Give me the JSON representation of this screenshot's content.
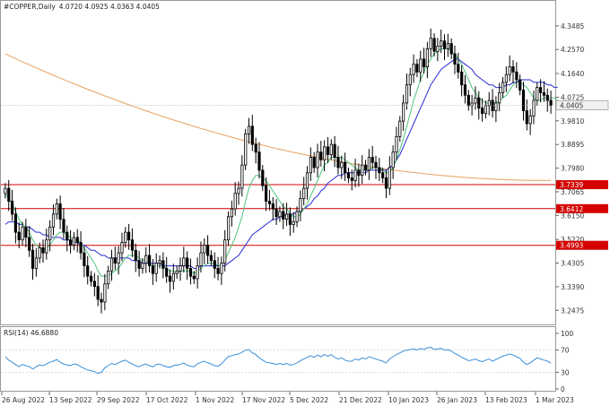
{
  "chart_data": {
    "type": "candlestick",
    "title": "#COPPER,Daily",
    "ohlc_label": "4.0720 4.0925 4.0363 4.0405",
    "last_price": 4.0405,
    "ylim": [
      3.2,
      4.4
    ],
    "price_ticks": [
      "4.3485",
      "4.2570",
      "4.1640",
      "4.0725",
      "3.9810",
      "3.8895",
      "3.7980",
      "3.7065",
      "3.6150",
      "3.5220",
      "3.4305",
      "3.3390",
      "3.2475"
    ],
    "horizontal_levels": [
      {
        "label": "3.7339",
        "value": 3.7339,
        "color": "#d40000"
      },
      {
        "label": "3.6412",
        "value": 3.6412,
        "color": "#d40000"
      },
      {
        "label": "3.4993",
        "value": 3.4993,
        "color": "#d40000"
      }
    ],
    "x_labels": [
      "26 Aug 2022",
      "13 Sep 2022",
      "29 Sep 2022",
      "17 Oct 2022",
      "1 Nov 2022",
      "17 Nov 2022",
      "5 Dec 2022",
      "21 Dec 2022",
      "10 Jan 2023",
      "26 Jan 2023",
      "13 Feb 2023",
      "1 Mar 2023"
    ],
    "closes": [
      3.72,
      3.67,
      3.62,
      3.55,
      3.52,
      3.57,
      3.53,
      3.48,
      3.41,
      3.45,
      3.49,
      3.47,
      3.52,
      3.57,
      3.62,
      3.66,
      3.6,
      3.55,
      3.52,
      3.5,
      3.53,
      3.51,
      3.47,
      3.42,
      3.38,
      3.36,
      3.34,
      3.29,
      3.28,
      3.35,
      3.4,
      3.45,
      3.43,
      3.47,
      3.51,
      3.55,
      3.52,
      3.48,
      3.44,
      3.41,
      3.43,
      3.46,
      3.42,
      3.39,
      3.43,
      3.44,
      3.41,
      3.38,
      3.36,
      3.39,
      3.4,
      3.42,
      3.45,
      3.41,
      3.38,
      3.37,
      3.42,
      3.47,
      3.5,
      3.46,
      3.44,
      3.41,
      3.39,
      3.43,
      3.52,
      3.61,
      3.64,
      3.7,
      3.72,
      3.81,
      3.93,
      3.96,
      3.89,
      3.86,
      3.79,
      3.73,
      3.67,
      3.66,
      3.64,
      3.61,
      3.63,
      3.6,
      3.62,
      3.58,
      3.59,
      3.63,
      3.68,
      3.72,
      3.78,
      3.84,
      3.8,
      3.86,
      3.83,
      3.88,
      3.85,
      3.89,
      3.84,
      3.8,
      3.82,
      3.78,
      3.76,
      3.75,
      3.79,
      3.77,
      3.81,
      3.79,
      3.84,
      3.82,
      3.8,
      3.78,
      3.76,
      3.72,
      3.8,
      3.86,
      3.92,
      3.98,
      4.05,
      4.12,
      4.16,
      4.2,
      4.17,
      4.22,
      4.19,
      4.26,
      4.3,
      4.25,
      4.27,
      4.29,
      4.26,
      4.28,
      4.24,
      4.2,
      4.17,
      4.12,
      4.08,
      4.04,
      4.05,
      4.07,
      4.03,
      4.01,
      4.04,
      4.06,
      4.02,
      4.05,
      4.09,
      4.13,
      4.16,
      4.19,
      4.17,
      4.14,
      4.1,
      4.02,
      3.97,
      4.0,
      4.06,
      4.11,
      4.09,
      4.08,
      4.06,
      4.0405
    ],
    "ma_fast": [
      3.7,
      3.68,
      3.66,
      3.63,
      3.6,
      3.58,
      3.57,
      3.55,
      3.52,
      3.5,
      3.49,
      3.48,
      3.49,
      3.5,
      3.52,
      3.54,
      3.55,
      3.55,
      3.54,
      3.53,
      3.52,
      3.52,
      3.51,
      3.49,
      3.47,
      3.45,
      3.43,
      3.4,
      3.38,
      3.38,
      3.38,
      3.39,
      3.4,
      3.41,
      3.43,
      3.45,
      3.46,
      3.46,
      3.46,
      3.45,
      3.44,
      3.44,
      3.43,
      3.42,
      3.42,
      3.42,
      3.42,
      3.41,
      3.4,
      3.4,
      3.39,
      3.4,
      3.4,
      3.4,
      3.4,
      3.39,
      3.4,
      3.41,
      3.42,
      3.43,
      3.43,
      3.43,
      3.42,
      3.42,
      3.44,
      3.47,
      3.5,
      3.53,
      3.57,
      3.61,
      3.67,
      3.72,
      3.75,
      3.77,
      3.77,
      3.76,
      3.75,
      3.73,
      3.71,
      3.69,
      3.67,
      3.65,
      3.64,
      3.62,
      3.61,
      3.61,
      3.62,
      3.64,
      3.66,
      3.69,
      3.72,
      3.75,
      3.78,
      3.81,
      3.82,
      3.84,
      3.84,
      3.84,
      3.84,
      3.83,
      3.82,
      3.81,
      3.8,
      3.79,
      3.79,
      3.79,
      3.79,
      3.8,
      3.8,
      3.8,
      3.79,
      3.78,
      3.78,
      3.8,
      3.83,
      3.87,
      3.91,
      3.96,
      4.01,
      4.06,
      4.1,
      4.14,
      4.17,
      4.2,
      4.22,
      4.24,
      4.25,
      4.26,
      4.26,
      4.26,
      4.25,
      4.24,
      4.22,
      4.2,
      4.17,
      4.14,
      4.11,
      4.09,
      4.07,
      4.06,
      4.05,
      4.05,
      4.05,
      4.05,
      4.06,
      4.07,
      4.08,
      4.1,
      4.12,
      4.13,
      4.13,
      4.12,
      4.11,
      4.09,
      4.07,
      4.06,
      4.06,
      4.07,
      4.07,
      4.07,
      4.07,
      4.06
    ],
    "ma_slow": [
      3.58,
      3.59,
      3.59,
      3.59,
      3.58,
      3.58,
      3.57,
      3.57,
      3.56,
      3.55,
      3.55,
      3.54,
      3.54,
      3.53,
      3.53,
      3.53,
      3.53,
      3.52,
      3.52,
      3.52,
      3.51,
      3.51,
      3.5,
      3.5,
      3.49,
      3.48,
      3.48,
      3.47,
      3.46,
      3.46,
      3.45,
      3.45,
      3.45,
      3.45,
      3.45,
      3.45,
      3.45,
      3.44,
      3.44,
      3.44,
      3.43,
      3.43,
      3.43,
      3.43,
      3.43,
      3.43,
      3.42,
      3.42,
      3.42,
      3.42,
      3.42,
      3.42,
      3.42,
      3.42,
      3.42,
      3.41,
      3.41,
      3.42,
      3.42,
      3.42,
      3.42,
      3.42,
      3.42,
      3.42,
      3.42,
      3.43,
      3.44,
      3.45,
      3.46,
      3.48,
      3.5,
      3.52,
      3.54,
      3.55,
      3.56,
      3.57,
      3.58,
      3.59,
      3.6,
      3.6,
      3.61,
      3.61,
      3.62,
      3.62,
      3.62,
      3.63,
      3.63,
      3.64,
      3.65,
      3.66,
      3.68,
      3.69,
      3.71,
      3.72,
      3.74,
      3.75,
      3.76,
      3.77,
      3.77,
      3.78,
      3.78,
      3.78,
      3.78,
      3.78,
      3.78,
      3.78,
      3.79,
      3.79,
      3.79,
      3.79,
      3.79,
      3.79,
      3.8,
      3.81,
      3.83,
      3.85,
      3.88,
      3.91,
      3.94,
      3.97,
      4.0,
      4.03,
      4.06,
      4.09,
      4.12,
      4.14,
      4.16,
      4.18,
      4.19,
      4.2,
      4.21,
      4.22,
      4.22,
      4.21,
      4.2,
      4.19,
      4.18,
      4.16,
      4.15,
      4.14,
      4.13,
      4.12,
      4.12,
      4.11,
      4.11,
      4.11,
      4.12,
      4.12,
      4.13,
      4.13,
      4.14,
      4.14,
      4.14,
      4.14,
      4.13,
      4.13,
      4.13,
      4.13,
      4.12,
      4.12,
      4.11,
      4.11
    ],
    "ma_long": {
      "start": 4.24,
      "end": 3.75
    },
    "rsi": {
      "label": "RSI(14) 46.6880",
      "ylim": [
        0,
        100
      ],
      "ticks": [
        "100",
        "70",
        "30",
        "0"
      ],
      "values": [
        58,
        52,
        48,
        44,
        40,
        44,
        42,
        40,
        36,
        40,
        43,
        42,
        45,
        48,
        50,
        53,
        48,
        45,
        43,
        42,
        45,
        44,
        40,
        37,
        34,
        33,
        31,
        28,
        30,
        38,
        42,
        46,
        44,
        47,
        50,
        52,
        48,
        45,
        42,
        40,
        43,
        45,
        42,
        40,
        44,
        45,
        42,
        40,
        39,
        42,
        43,
        44,
        47,
        43,
        41,
        40,
        45,
        48,
        50,
        47,
        45,
        42,
        41,
        45,
        52,
        58,
        60,
        62,
        63,
        66,
        70,
        71,
        65,
        62,
        56,
        52,
        48,
        47,
        46,
        44,
        46,
        44,
        46,
        43,
        44,
        47,
        51,
        54,
        57,
        60,
        57,
        61,
        58,
        62,
        59,
        62,
        57,
        54,
        56,
        52,
        50,
        50,
        54,
        52,
        56,
        54,
        58,
        56,
        54,
        52,
        50,
        47,
        54,
        58,
        62,
        65,
        68,
        70,
        71,
        72,
        70,
        73,
        71,
        74,
        75,
        71,
        72,
        73,
        70,
        71,
        68,
        64,
        61,
        57,
        54,
        51,
        52,
        54,
        51,
        49,
        52,
        54,
        50,
        53,
        56,
        59,
        61,
        63,
        61,
        58,
        55,
        48,
        44,
        47,
        52,
        56,
        54,
        52,
        50,
        46.688
      ]
    }
  }
}
